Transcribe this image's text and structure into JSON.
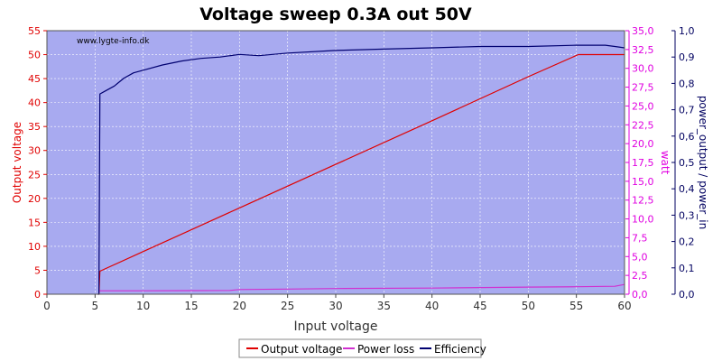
{
  "chart_data": {
    "type": "line",
    "title": "Voltage sweep 0.3A out 50V",
    "watermark": "www.lygte-info.dk",
    "xlabel": "Input voltage",
    "y_left_label": "Output voltage",
    "y_mid_label": "watt",
    "y_right_label": "power_output / power_in",
    "xlim": [
      0,
      60
    ],
    "ylim_left": [
      0,
      55
    ],
    "ylim_mid": [
      0,
      35
    ],
    "ylim_right": [
      0,
      1
    ],
    "x_ticks": [
      "0",
      "5",
      "10",
      "15",
      "20",
      "25",
      "30",
      "35",
      "40",
      "45",
      "50",
      "55",
      "60"
    ],
    "y_left_ticks": [
      "0",
      "5",
      "10",
      "15",
      "20",
      "25",
      "30",
      "35",
      "40",
      "45",
      "50",
      "55"
    ],
    "y_mid_ticks": [
      "0,0",
      "2,5",
      "5,0",
      "7,5",
      "10,0",
      "12,5",
      "15,0",
      "17,5",
      "20,0",
      "22,5",
      "25,0",
      "27,5",
      "30,0",
      "32,5",
      "35,0"
    ],
    "y_right_ticks": [
      "0,0",
      "0,1",
      "0,2",
      "0,3",
      "0,4",
      "0,5",
      "0,6",
      "0,7",
      "0,8",
      "0,9",
      "1,0"
    ],
    "grid": true,
    "legend_position": "bottom",
    "colors": {
      "plot_bg": "#a8aaf0",
      "output_voltage": "#e00000",
      "power_loss": "#d030d0",
      "efficiency": "#000070",
      "left_axis": "#e00000",
      "mid_axis": "#e000e0",
      "right_axis": "#000060"
    },
    "series": [
      {
        "name": "Output voltage",
        "axis": "left",
        "x": [
          5.3,
          5.4,
          5.5,
          10,
          20,
          30,
          40,
          50,
          55.2,
          60
        ],
        "y": [
          0,
          0,
          4.8,
          8.9,
          18.0,
          27.1,
          36.2,
          45.4,
          50.0,
          50.0
        ]
      },
      {
        "name": "Power loss",
        "axis": "mid",
        "x": [
          5.4,
          10,
          15,
          19,
          20,
          25,
          30,
          40,
          50,
          55,
          59,
          60
        ],
        "y": [
          0.45,
          0.45,
          0.48,
          0.5,
          0.62,
          0.68,
          0.75,
          0.82,
          0.95,
          1.0,
          1.05,
          1.3
        ]
      },
      {
        "name": "Efficiency",
        "axis": "right",
        "x": [
          5.3,
          5.4,
          5.5,
          6,
          7,
          8,
          9,
          10,
          12,
          14,
          16,
          18,
          20,
          22,
          25,
          30,
          35,
          40,
          45,
          50,
          55,
          58,
          59,
          60
        ],
        "y": [
          0,
          0.0,
          0.76,
          0.77,
          0.79,
          0.82,
          0.84,
          0.85,
          0.87,
          0.885,
          0.895,
          0.9,
          0.91,
          0.905,
          0.915,
          0.925,
          0.93,
          0.935,
          0.94,
          0.94,
          0.945,
          0.945,
          0.94,
          0.935
        ]
      }
    ]
  }
}
